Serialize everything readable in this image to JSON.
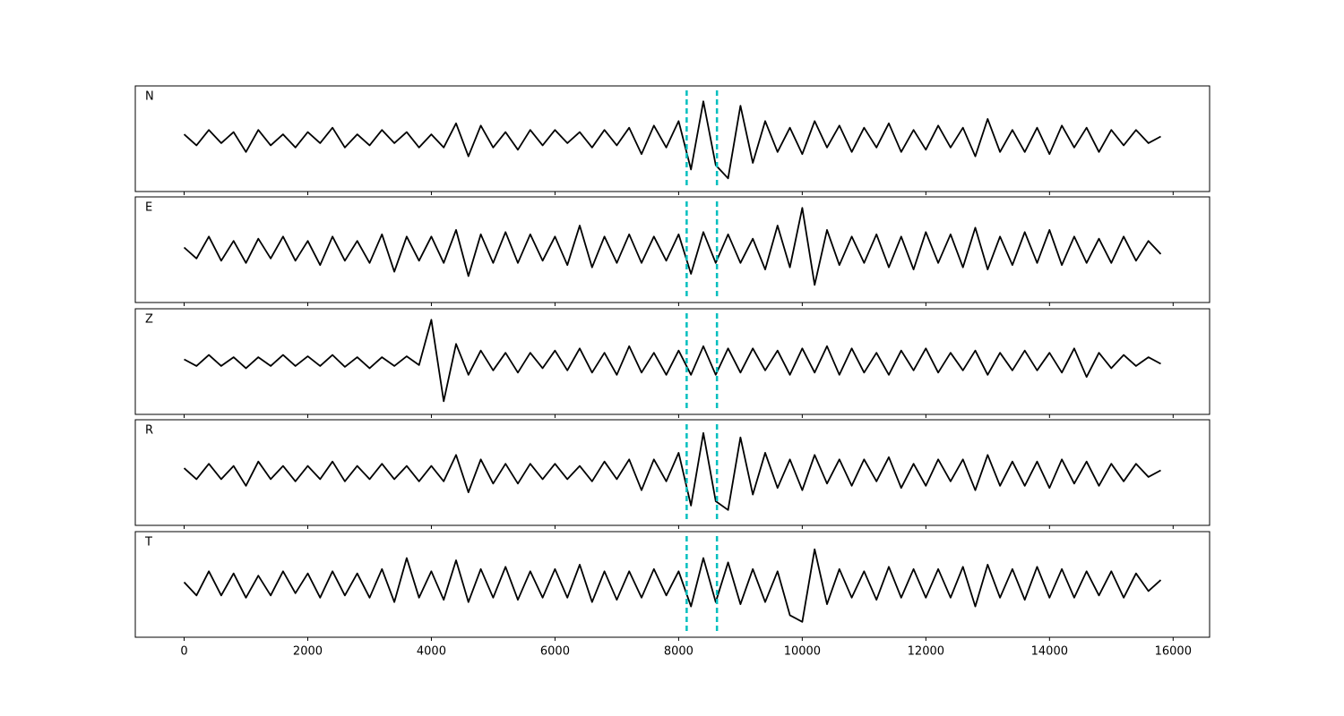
{
  "chart_data": {
    "type": "line",
    "x": [
      0,
      200,
      400,
      600,
      800,
      1000,
      1200,
      1400,
      1600,
      1800,
      2000,
      2200,
      2400,
      2600,
      2800,
      3000,
      3200,
      3400,
      3600,
      3800,
      4000,
      4200,
      4400,
      4600,
      4800,
      5000,
      5200,
      5400,
      5600,
      5800,
      6000,
      6200,
      6400,
      6600,
      6800,
      7000,
      7200,
      7400,
      7600,
      7800,
      8000,
      8200,
      8400,
      8600,
      8800,
      9000,
      9200,
      9400,
      9600,
      9800,
      10000,
      10200,
      10400,
      10600,
      10800,
      11000,
      11200,
      11400,
      11600,
      11800,
      12000,
      12200,
      12400,
      12600,
      12800,
      13000,
      13200,
      13400,
      13600,
      13800,
      14000,
      14200,
      14400,
      14600,
      14800,
      15000,
      15200,
      15400,
      15600,
      15800
    ],
    "xlim": [
      -790,
      16590
    ],
    "xticks": [
      0,
      2000,
      4000,
      6000,
      8000,
      10000,
      12000,
      14000,
      16000
    ],
    "ylim": [
      -1.2,
      1.2
    ],
    "vlines": [
      8130,
      8620
    ],
    "vline_color": "#00bfbf",
    "series": [
      {
        "name": "N",
        "color": "#000000",
        "values": [
          0.1,
          -0.15,
          0.2,
          -0.1,
          0.15,
          -0.3,
          0.2,
          -0.15,
          0.1,
          -0.2,
          0.15,
          -0.1,
          0.25,
          -0.2,
          0.1,
          -0.15,
          0.2,
          -0.1,
          0.15,
          -0.2,
          0.1,
          -0.2,
          0.35,
          -0.4,
          0.3,
          -0.2,
          0.15,
          -0.25,
          0.2,
          -0.15,
          0.2,
          -0.1,
          0.15,
          -0.2,
          0.2,
          -0.15,
          0.25,
          -0.35,
          0.3,
          -0.2,
          0.4,
          -0.7,
          0.85,
          -0.6,
          -0.9,
          0.75,
          -0.55,
          0.4,
          -0.3,
          0.25,
          -0.35,
          0.4,
          -0.2,
          0.3,
          -0.3,
          0.25,
          -0.2,
          0.35,
          -0.3,
          0.2,
          -0.25,
          0.3,
          -0.2,
          0.25,
          -0.4,
          0.45,
          -0.3,
          0.2,
          -0.3,
          0.25,
          -0.35,
          0.3,
          -0.2,
          0.25,
          -0.3,
          0.2,
          -0.15,
          0.2,
          -0.1,
          0.05
        ]
      },
      {
        "name": "E",
        "color": "#000000",
        "values": [
          0.05,
          -0.2,
          0.3,
          -0.25,
          0.2,
          -0.3,
          0.25,
          -0.2,
          0.3,
          -0.25,
          0.2,
          -0.35,
          0.3,
          -0.25,
          0.2,
          -0.3,
          0.35,
          -0.5,
          0.3,
          -0.25,
          0.3,
          -0.3,
          0.45,
          -0.6,
          0.35,
          -0.3,
          0.4,
          -0.3,
          0.35,
          -0.25,
          0.3,
          -0.35,
          0.55,
          -0.4,
          0.3,
          -0.3,
          0.35,
          -0.3,
          0.3,
          -0.25,
          0.35,
          -0.55,
          0.4,
          -0.3,
          0.35,
          -0.3,
          0.25,
          -0.45,
          0.55,
          -0.4,
          0.95,
          -0.8,
          0.45,
          -0.35,
          0.3,
          -0.3,
          0.35,
          -0.4,
          0.3,
          -0.45,
          0.4,
          -0.3,
          0.35,
          -0.4,
          0.5,
          -0.45,
          0.3,
          -0.35,
          0.4,
          -0.3,
          0.45,
          -0.35,
          0.3,
          -0.3,
          0.25,
          -0.3,
          0.3,
          -0.25,
          0.2,
          -0.1
        ]
      },
      {
        "name": "Z",
        "color": "#000000",
        "values": [
          0.05,
          -0.1,
          0.15,
          -0.1,
          0.1,
          -0.15,
          0.1,
          -0.1,
          0.15,
          -0.1,
          0.12,
          -0.1,
          0.15,
          -0.12,
          0.1,
          -0.15,
          0.1,
          -0.1,
          0.12,
          -0.08,
          0.95,
          -0.9,
          0.4,
          -0.3,
          0.25,
          -0.2,
          0.2,
          -0.25,
          0.2,
          -0.15,
          0.25,
          -0.2,
          0.3,
          -0.25,
          0.2,
          -0.3,
          0.35,
          -0.25,
          0.2,
          -0.3,
          0.25,
          -0.3,
          0.35,
          -0.3,
          0.3,
          -0.25,
          0.3,
          -0.2,
          0.25,
          -0.3,
          0.3,
          -0.25,
          0.35,
          -0.3,
          0.3,
          -0.25,
          0.2,
          -0.3,
          0.25,
          -0.2,
          0.3,
          -0.25,
          0.2,
          -0.2,
          0.25,
          -0.3,
          0.2,
          -0.2,
          0.25,
          -0.2,
          0.2,
          -0.25,
          0.3,
          -0.35,
          0.2,
          -0.15,
          0.15,
          -0.1,
          0.1,
          -0.05
        ]
      },
      {
        "name": "R",
        "color": "#000000",
        "values": [
          0.1,
          -0.15,
          0.2,
          -0.15,
          0.15,
          -0.3,
          0.25,
          -0.15,
          0.15,
          -0.2,
          0.15,
          -0.15,
          0.25,
          -0.2,
          0.15,
          -0.15,
          0.2,
          -0.15,
          0.15,
          -0.2,
          0.15,
          -0.2,
          0.4,
          -0.45,
          0.3,
          -0.25,
          0.2,
          -0.25,
          0.2,
          -0.15,
          0.2,
          -0.15,
          0.15,
          -0.2,
          0.25,
          -0.15,
          0.3,
          -0.4,
          0.3,
          -0.2,
          0.45,
          -0.75,
          0.9,
          -0.65,
          -0.85,
          0.8,
          -0.5,
          0.45,
          -0.35,
          0.3,
          -0.4,
          0.4,
          -0.25,
          0.3,
          -0.3,
          0.3,
          -0.2,
          0.35,
          -0.35,
          0.2,
          -0.3,
          0.3,
          -0.2,
          0.3,
          -0.4,
          0.4,
          -0.3,
          0.25,
          -0.3,
          0.25,
          -0.35,
          0.3,
          -0.25,
          0.25,
          -0.3,
          0.2,
          -0.2,
          0.2,
          -0.1,
          0.05
        ]
      },
      {
        "name": "T",
        "color": "#000000",
        "values": [
          0.05,
          -0.25,
          0.3,
          -0.25,
          0.25,
          -0.3,
          0.2,
          -0.25,
          0.3,
          -0.2,
          0.25,
          -0.3,
          0.3,
          -0.25,
          0.25,
          -0.3,
          0.35,
          -0.4,
          0.6,
          -0.3,
          0.3,
          -0.35,
          0.55,
          -0.4,
          0.35,
          -0.3,
          0.4,
          -0.35,
          0.3,
          -0.3,
          0.35,
          -0.3,
          0.45,
          -0.4,
          0.3,
          -0.35,
          0.3,
          -0.3,
          0.35,
          -0.25,
          0.3,
          -0.5,
          0.6,
          -0.4,
          0.5,
          -0.45,
          0.35,
          -0.4,
          0.3,
          -0.7,
          -0.85,
          0.8,
          -0.45,
          0.35,
          -0.3,
          0.3,
          -0.35,
          0.4,
          -0.3,
          0.35,
          -0.3,
          0.35,
          -0.3,
          0.4,
          -0.5,
          0.45,
          -0.3,
          0.35,
          -0.35,
          0.4,
          -0.3,
          0.35,
          -0.3,
          0.3,
          -0.25,
          0.3,
          -0.3,
          0.25,
          -0.15,
          0.1
        ]
      }
    ]
  }
}
